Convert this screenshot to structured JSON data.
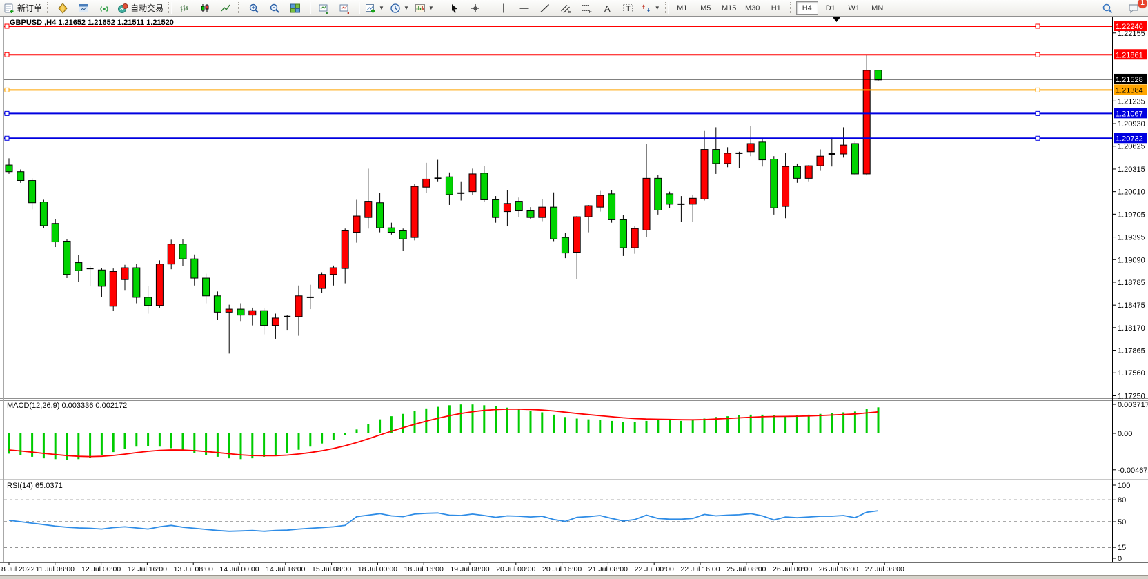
{
  "toolbar": {
    "groups": [
      {
        "name": "orders",
        "items": [
          {
            "name": "new-order",
            "icon": "new-order",
            "label": "新订单"
          }
        ]
      },
      {
        "name": "services",
        "items": [
          {
            "name": "market-watch",
            "icon": "gold-diamond"
          },
          {
            "name": "profiles",
            "icon": "chart-window"
          },
          {
            "name": "signals",
            "icon": "signal"
          },
          {
            "name": "auto-trading",
            "icon": "autotrade",
            "label": "自动交易"
          }
        ]
      },
      {
        "name": "chart-types",
        "items": [
          {
            "name": "bars-chart",
            "icon": "bars"
          },
          {
            "name": "candles-chart",
            "icon": "candles"
          },
          {
            "name": "line-chart",
            "icon": "line"
          }
        ]
      },
      {
        "name": "zoom",
        "items": [
          {
            "name": "zoom-in",
            "icon": "zoom-in"
          },
          {
            "name": "zoom-out",
            "icon": "zoom-out"
          },
          {
            "name": "tile-windows",
            "icon": "tile"
          }
        ]
      },
      {
        "name": "arrange",
        "items": [
          {
            "name": "auto-arrange",
            "icon": "chart-up"
          },
          {
            "name": "dock-chart",
            "icon": "chart-dock"
          }
        ]
      },
      {
        "name": "add-tools",
        "items": [
          {
            "name": "new-chart",
            "icon": "new-chart",
            "dd": true
          },
          {
            "name": "periods-menu",
            "icon": "clock",
            "dd": true
          },
          {
            "name": "chart-template",
            "icon": "palette",
            "dd": true
          }
        ]
      },
      {
        "name": "pointer",
        "items": [
          {
            "name": "cursor",
            "icon": "cursor"
          },
          {
            "name": "crosshair",
            "icon": "crosshair"
          }
        ]
      },
      {
        "name": "draw",
        "items": [
          {
            "name": "vertical-line",
            "icon": "vline"
          },
          {
            "name": "horizontal-line",
            "icon": "hline"
          },
          {
            "name": "trendline",
            "icon": "trend"
          },
          {
            "name": "equidistant-channel",
            "icon": "channel"
          },
          {
            "name": "fibonacci",
            "icon": "fibo"
          },
          {
            "name": "text",
            "icon": "text-a"
          },
          {
            "name": "text-label",
            "icon": "text-t"
          },
          {
            "name": "arrows",
            "icon": "shapes",
            "dd": true
          }
        ]
      }
    ],
    "periods": {
      "items": [
        "M1",
        "M5",
        "M15",
        "M30",
        "H1",
        "H4",
        "D1",
        "W1",
        "MN"
      ],
      "active": "H4"
    },
    "right": [
      {
        "name": "search",
        "icon": "search"
      },
      {
        "name": "notifications",
        "icon": "chat",
        "badge": "1"
      }
    ]
  },
  "chart": {
    "title": "GBPUSD ,H4 1.21652 1.21652 1.21511 1.21520",
    "symbol": "GBPUSD",
    "period": "H4",
    "ohlc": {
      "open": "1.21652",
      "high": "1.21652",
      "low": "1.21511",
      "close": "1.21520"
    },
    "bid": "1.21528"
  },
  "price_axis": {
    "ticks": [
      "1.22155",
      "1.21235",
      "1.20930",
      "1.20625",
      "1.20315",
      "1.20010",
      "1.19705",
      "1.19395",
      "1.19090",
      "1.18785",
      "1.18475",
      "1.18170",
      "1.17865",
      "1.17560",
      "1.17250"
    ]
  },
  "object_lines": [
    {
      "price": 1.22246,
      "label": "1.22246",
      "color": "red"
    },
    {
      "price": 1.21861,
      "label": "1.21861",
      "color": "red"
    },
    {
      "price": 1.21528,
      "label": "1.21528",
      "color": "bid"
    },
    {
      "price": 1.21384,
      "label": "1.21384",
      "color": "orange"
    },
    {
      "price": 1.21067,
      "label": "1.21067",
      "color": "blue"
    },
    {
      "price": 1.20732,
      "label": "1.20732",
      "color": "blue"
    }
  ],
  "macd_panel": {
    "label": "MACD(12,26,9) 0.003336 0.002172",
    "axis": [
      "0.003717",
      "0.00",
      "-0.004672"
    ],
    "axis_values": [
      0.003717,
      0,
      -0.004672
    ]
  },
  "rsi_panel": {
    "label": "RSI(14) 65.0371",
    "axis": [
      "100",
      "80",
      "50",
      "15",
      "0"
    ],
    "axis_values": [
      100,
      80,
      50,
      15,
      0
    ],
    "levels": [
      80,
      50,
      15
    ]
  },
  "chart_data": {
    "type": "candlestick",
    "symbol": "GBPUSD",
    "timeframe": "H4",
    "title": "GBPUSD ,H4 1.21652 1.21652 1.21511 1.21520",
    "y_range": [
      1.1725,
      1.22246
    ],
    "macd_range": [
      -0.004672,
      0.003717
    ],
    "rsi_range": [
      0,
      100
    ],
    "legend_position": "none",
    "grid": false,
    "x_labels": [
      "8 Jul 2022",
      "11 Jul 08:00",
      "12 Jul 00:00",
      "12 Jul 16:00",
      "13 Jul 08:00",
      "14 Jul 00:00",
      "14 Jul 16:00",
      "15 Jul 08:00",
      "18 Jul 00:00",
      "18 Jul 16:00",
      "19 Jul 08:00",
      "20 Jul 00:00",
      "20 Jul 16:00",
      "21 Jul 08:00",
      "22 Jul 00:00",
      "22 Jul 16:00",
      "25 Jul 08:00",
      "26 Jul 00:00",
      "26 Jul 16:00",
      "27 Jul 08:00"
    ],
    "candles": [
      [
        1.2037,
        1.2046,
        1.2025,
        1.2028
      ],
      [
        1.2028,
        1.2031,
        1.2013,
        1.2016
      ],
      [
        1.2016,
        1.2019,
        1.1977,
        1.1986
      ],
      [
        1.1987,
        1.199,
        1.1952,
        1.1955
      ],
      [
        1.1958,
        1.1964,
        1.1926,
        1.1933
      ],
      [
        1.1934,
        1.1937,
        1.1884,
        1.1889
      ],
      [
        1.1905,
        1.1915,
        1.1879,
        1.1894
      ],
      [
        1.1897,
        1.19,
        1.1873,
        1.1895
      ],
      [
        1.1895,
        1.1898,
        1.1858,
        1.1873
      ],
      [
        1.1846,
        1.1897,
        1.184,
        1.1893
      ],
      [
        1.1882,
        1.1902,
        1.1868,
        1.1898
      ],
      [
        1.1898,
        1.1903,
        1.185,
        1.1858
      ],
      [
        1.1858,
        1.1873,
        1.1836,
        1.1847
      ],
      [
        1.1847,
        1.1908,
        1.1844,
        1.1903
      ],
      [
        1.1903,
        1.1936,
        1.1896,
        1.193
      ],
      [
        1.193,
        1.1937,
        1.19,
        1.191
      ],
      [
        1.191,
        1.1916,
        1.1874,
        1.1884
      ],
      [
        1.1884,
        1.189,
        1.185,
        1.186
      ],
      [
        1.186,
        1.1866,
        1.1828,
        1.1838
      ],
      [
        1.1838,
        1.1848,
        1.1782,
        1.1842
      ],
      [
        1.1842,
        1.185,
        1.1826,
        1.1834
      ],
      [
        1.1834,
        1.1844,
        1.182,
        1.184
      ],
      [
        1.184,
        1.1843,
        1.1808,
        1.182
      ],
      [
        1.182,
        1.1836,
        1.1802,
        1.183
      ],
      [
        1.183,
        1.1834,
        1.1814,
        1.1832
      ],
      [
        1.1832,
        1.1874,
        1.1806,
        1.186
      ],
      [
        1.1858,
        1.1875,
        1.1842,
        1.1858
      ],
      [
        1.187,
        1.1892,
        1.1864,
        1.1889
      ],
      [
        1.1889,
        1.1901,
        1.1874,
        1.1898
      ],
      [
        1.1897,
        1.1951,
        1.1877,
        1.1948
      ],
      [
        1.1946,
        1.199,
        1.1932,
        1.1968
      ],
      [
        1.1966,
        1.2032,
        1.1951,
        1.1988
      ],
      [
        1.1986,
        1.1999,
        1.1946,
        1.1952
      ],
      [
        1.1952,
        1.1959,
        1.1943,
        1.1946
      ],
      [
        1.1948,
        1.1951,
        1.1921,
        1.1937
      ],
      [
        1.1939,
        1.2011,
        1.1935,
        1.2008
      ],
      [
        1.2007,
        1.204,
        1.1999,
        1.2018
      ],
      [
        1.2019,
        1.2044,
        1.2014,
        1.2019
      ],
      [
        1.2021,
        1.2027,
        1.1983,
        1.1997
      ],
      [
        1.1999,
        1.2014,
        1.1989,
        1.1998
      ],
      [
        1.2001,
        1.2032,
        1.1997,
        1.2025
      ],
      [
        1.2026,
        1.2036,
        1.1987,
        1.199
      ],
      [
        1.199,
        1.1995,
        1.1959,
        1.1966
      ],
      [
        1.1974,
        1.2003,
        1.1954,
        1.1985
      ],
      [
        1.1988,
        1.1993,
        1.1967,
        1.1975
      ],
      [
        1.1975,
        1.198,
        1.1964,
        1.1966
      ],
      [
        1.1966,
        1.1991,
        1.1961,
        1.198
      ],
      [
        1.198,
        1.2,
        1.1934,
        1.1937
      ],
      [
        1.1939,
        1.1945,
        1.1911,
        1.1918
      ],
      [
        1.1919,
        1.1968,
        1.1883,
        1.1967
      ],
      [
        1.1967,
        1.1983,
        1.1946,
        1.1982
      ],
      [
        1.198,
        1.2002,
        1.1974,
        1.1996
      ],
      [
        1.1998,
        1.2003,
        1.1959,
        1.1963
      ],
      [
        1.1963,
        1.1969,
        1.1914,
        1.1925
      ],
      [
        1.1925,
        1.1954,
        1.1917,
        1.1951
      ],
      [
        1.1949,
        1.2065,
        1.194,
        1.2019
      ],
      [
        1.2019,
        1.2024,
        1.197,
        1.1976
      ],
      [
        1.1998,
        1.2001,
        1.1979,
        1.1984
      ],
      [
        1.1984,
        1.1995,
        1.196,
        1.1984
      ],
      [
        1.1984,
        1.1997,
        1.196,
        1.1992
      ],
      [
        1.1991,
        1.2083,
        1.1989,
        1.2058
      ],
      [
        1.2058,
        1.2088,
        1.2025,
        1.2039
      ],
      [
        1.2039,
        1.2061,
        1.2034,
        1.2053
      ],
      [
        1.2053,
        1.2055,
        1.2033,
        1.2053
      ],
      [
        1.2055,
        1.209,
        1.2049,
        1.2066
      ],
      [
        1.2068,
        1.2073,
        1.2035,
        1.2044
      ],
      [
        1.2045,
        1.2049,
        1.197,
        1.1979
      ],
      [
        1.1981,
        1.2053,
        1.1965,
        1.2035
      ],
      [
        1.2035,
        1.2039,
        1.2013,
        1.2019
      ],
      [
        1.2019,
        1.2037,
        1.2014,
        1.2036
      ],
      [
        1.2036,
        1.2058,
        1.2029,
        1.2049
      ],
      [
        1.205,
        1.2074,
        1.2035,
        1.2052
      ],
      [
        1.2052,
        1.2088,
        1.2047,
        1.2064
      ],
      [
        1.2066,
        1.2069,
        1.2023,
        1.2025
      ],
      [
        1.2025,
        1.2186,
        1.2023,
        1.2165
      ],
      [
        1.21652,
        1.21652,
        1.21511,
        1.2152
      ]
    ],
    "macd_histogram": [
      -0.0026,
      -0.0028,
      -0.003,
      -0.0032,
      -0.0033,
      -0.0034,
      -0.0033,
      -0.0031,
      -0.0028,
      -0.0024,
      -0.002,
      -0.0017,
      -0.0016,
      -0.0017,
      -0.0019,
      -0.0022,
      -0.0025,
      -0.0028,
      -0.003,
      -0.0032,
      -0.0033,
      -0.0032,
      -0.003,
      -0.0028,
      -0.0025,
      -0.0021,
      -0.0017,
      -0.0013,
      -0.0008,
      -0.0002,
      0.0005,
      0.0012,
      0.0018,
      0.0022,
      0.0025,
      0.0029,
      0.0032,
      0.0034,
      0.0036,
      0.0037,
      0.0037,
      0.0036,
      0.0035,
      0.0033,
      0.0031,
      0.0029,
      0.0027,
      0.0024,
      0.0021,
      0.0019,
      0.0018,
      0.0017,
      0.0016,
      0.0015,
      0.0015,
      0.0016,
      0.0017,
      0.0017,
      0.0016,
      0.0017,
      0.0019,
      0.0021,
      0.0022,
      0.0023,
      0.0024,
      0.0024,
      0.0023,
      0.0022,
      0.0023,
      0.0024,
      0.0025,
      0.0026,
      0.0027,
      0.0028,
      0.0031,
      0.003336
    ],
    "rsi_values": [
      52,
      50,
      48,
      46,
      44,
      42.5,
      41.5,
      41,
      40,
      42,
      43,
      41.5,
      40,
      43,
      45,
      42.5,
      41,
      39.5,
      38,
      37,
      37.5,
      38,
      37,
      38,
      38.5,
      40,
      41,
      42,
      43,
      45,
      57,
      59,
      61,
      58,
      57,
      60.5,
      61.5,
      62,
      59,
      58.5,
      60.5,
      58.5,
      56,
      58,
      57.5,
      56.5,
      57.5,
      53,
      50.5,
      56,
      57,
      58.5,
      54.5,
      51,
      53,
      59,
      54.5,
      53.5,
      53.5,
      54.5,
      60,
      58,
      59,
      59.5,
      61,
      58,
      52.5,
      56.5,
      55.5,
      56.5,
      57.5,
      57.5,
      58.5,
      55.5,
      63,
      65.04
    ]
  },
  "colors": {
    "bull_candle": "#FF0000",
    "bear_candle": "#00D400",
    "candle_outline": "#000000",
    "macd_histogram": "#00CC00",
    "macd_signal": "#FF0000",
    "rsi_line": "#2E8CE6",
    "line_red": "#FF0000",
    "line_blue": "#0000E0",
    "line_orange": "#FFA500",
    "bid_line": "#000000",
    "axis_text": "#000000",
    "panel_border": "#909090"
  }
}
